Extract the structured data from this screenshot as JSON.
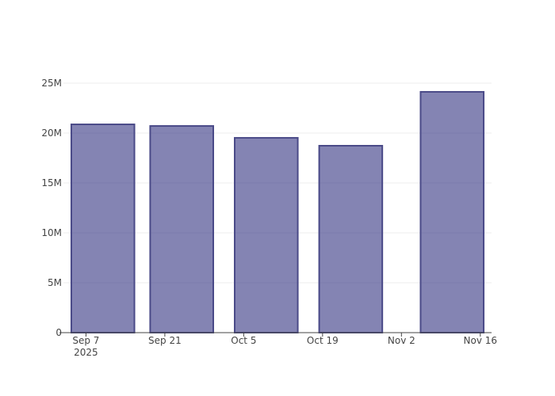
{
  "chart_data": {
    "type": "bar",
    "x": [
      "2025-09-10",
      "2025-09-24",
      "2025-10-09",
      "2025-10-24",
      "2025-11-11"
    ],
    "values": [
      20870000,
      20710000,
      19520000,
      18730000,
      24130000
    ],
    "color": "rgba(50,50,128,0.6)",
    "line_color": "#4a4a88",
    "xlim": [
      "2025-09-03",
      "2025-11-18"
    ],
    "xticks": [
      {
        "value": "2025-09-07",
        "label": "Sep 7\n2025"
      },
      {
        "value": "2025-09-21",
        "label": "Sep 21"
      },
      {
        "value": "2025-10-05",
        "label": "Oct 5"
      },
      {
        "value": "2025-10-19",
        "label": "Oct 19"
      },
      {
        "value": "2025-11-02",
        "label": "Nov 2"
      },
      {
        "value": "2025-11-16",
        "label": "Nov 16"
      }
    ],
    "ylim": [
      0,
      25000000
    ],
    "yticks": [
      0,
      {
        "value": 5000000,
        "label": "5M"
      },
      {
        "value": 10000000,
        "label": "10M"
      },
      {
        "value": 15000000,
        "label": "15M"
      },
      {
        "value": 20000000,
        "label": "20M"
      },
      {
        "value": 25000000,
        "label": "25M"
      }
    ],
    "grid": true
  }
}
